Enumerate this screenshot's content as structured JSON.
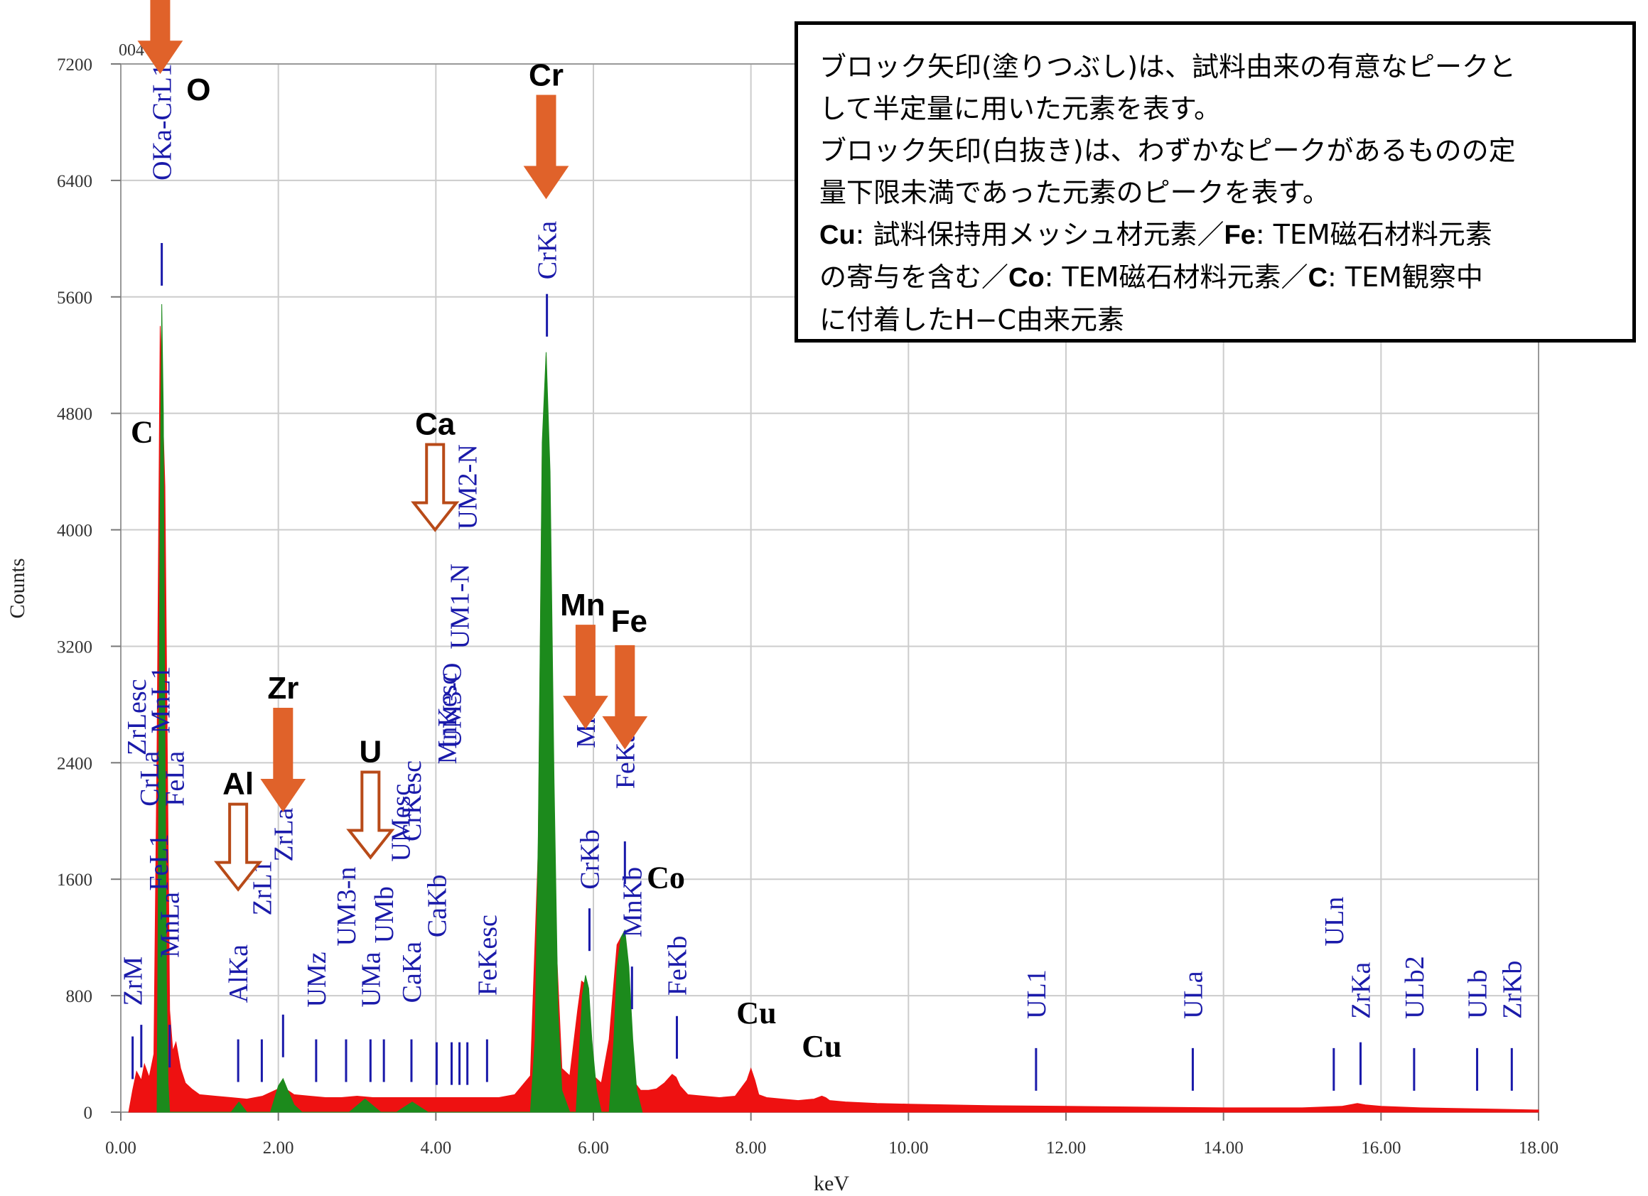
{
  "chart_data": {
    "type": "area",
    "xlabel": "keV",
    "ylabel": "Counts",
    "xlim": [
      0,
      18
    ],
    "ylim": [
      0,
      7200
    ],
    "x_ticks": [
      "0.00",
      "2.00",
      "4.00",
      "6.00",
      "8.00",
      "10.00",
      "12.00",
      "14.00",
      "16.00",
      "18.00"
    ],
    "y_ticks": [
      "0",
      "800",
      "1600",
      "2400",
      "3200",
      "4000",
      "4800",
      "5600",
      "6400",
      "7200"
    ],
    "grid": true,
    "colors": {
      "background_spectrum": "#ee1111",
      "analyzed_peaks": "#1c8a1c",
      "marker_lines": "#1a1aaa",
      "arrow": "#e0622a",
      "arrow_outline": "#b84a18"
    },
    "series": [
      {
        "name": "",
        "color": "#ee1111",
        "x": [
          0.1,
          0.15,
          0.2,
          0.26,
          0.3,
          0.36,
          0.42,
          0.46,
          0.5,
          0.56,
          0.62,
          0.66,
          0.7,
          0.76,
          0.82,
          0.9,
          1.0,
          1.2,
          1.4,
          1.6,
          1.8,
          2.0,
          2.06,
          2.12,
          2.2,
          2.4,
          2.6,
          2.8,
          3.0,
          3.2,
          3.4,
          3.6,
          3.8,
          4.0,
          4.2,
          4.4,
          4.6,
          4.8,
          5.0,
          5.2,
          5.3,
          5.35,
          5.4,
          5.45,
          5.5,
          5.6,
          5.7,
          5.8,
          5.85,
          5.9,
          5.95,
          6.0,
          6.1,
          6.2,
          6.3,
          6.35,
          6.4,
          6.45,
          6.5,
          6.6,
          6.7,
          6.8,
          6.9,
          7.0,
          7.05,
          7.1,
          7.2,
          7.4,
          7.6,
          7.8,
          7.95,
          8.0,
          8.05,
          8.1,
          8.2,
          8.4,
          8.6,
          8.8,
          8.9,
          8.95,
          9.0,
          9.2,
          9.6,
          10.0,
          11.0,
          12.0,
          13.0,
          14.0,
          15.0,
          15.5,
          15.7,
          15.8,
          16.0,
          16.5,
          17.0,
          17.5,
          18.0
        ],
        "values": [
          0,
          150,
          280,
          220,
          330,
          240,
          400,
          2500,
          5400,
          4300,
          700,
          420,
          480,
          300,
          200,
          160,
          120,
          110,
          100,
          90,
          110,
          160,
          180,
          150,
          120,
          110,
          100,
          100,
          110,
          100,
          100,
          100,
          100,
          100,
          100,
          100,
          100,
          100,
          120,
          250,
          1800,
          4500,
          5200,
          4200,
          1500,
          300,
          250,
          700,
          900,
          880,
          600,
          250,
          200,
          500,
          1150,
          1200,
          1000,
          450,
          220,
          150,
          150,
          160,
          200,
          260,
          240,
          180,
          120,
          110,
          100,
          110,
          220,
          300,
          220,
          120,
          100,
          90,
          80,
          90,
          110,
          100,
          80,
          70,
          60,
          55,
          45,
          40,
          35,
          30,
          30,
          40,
          60,
          50,
          40,
          30,
          25,
          20,
          15
        ]
      },
      {
        "name": "",
        "color": "#1c8a1c",
        "x": [
          0.46,
          0.48,
          0.5,
          0.52,
          0.54,
          0.56,
          0.58,
          0.6,
          0.62,
          1.4,
          1.5,
          1.6,
          1.9,
          2.0,
          2.06,
          2.12,
          2.2,
          2.3,
          2.9,
          3.1,
          3.3,
          3.5,
          3.7,
          3.9,
          5.2,
          5.26,
          5.3,
          5.35,
          5.4,
          5.45,
          5.5,
          5.55,
          5.6,
          5.7,
          5.78,
          5.82,
          5.86,
          5.9,
          5.94,
          5.98,
          6.04,
          6.1,
          6.2,
          6.26,
          6.3,
          6.35,
          6.4,
          6.45,
          6.5,
          6.55,
          6.62
        ],
        "values": [
          0,
          2000,
          4200,
          5550,
          4800,
          2600,
          900,
          200,
          0,
          0,
          70,
          0,
          0,
          180,
          230,
          150,
          50,
          0,
          0,
          90,
          0,
          0,
          70,
          0,
          0,
          500,
          1900,
          4600,
          5220,
          4400,
          2300,
          700,
          150,
          0,
          0,
          400,
          800,
          940,
          850,
          500,
          150,
          0,
          0,
          500,
          1000,
          1200,
          1250,
          1000,
          500,
          150,
          0
        ]
      }
    ],
    "element_arrows": [
      {
        "element": "O",
        "style": "filled",
        "x": 0.5,
        "tip": 7140
      },
      {
        "element": "Cr",
        "style": "filled",
        "x": 5.4,
        "tip": 6280
      },
      {
        "element": "Mn",
        "style": "filled",
        "x": 5.9,
        "tip": 2640
      },
      {
        "element": "Fe",
        "style": "filled",
        "x": 6.4,
        "tip": 2500
      },
      {
        "element": "Zr",
        "style": "filled",
        "x": 2.06,
        "tip": 2070
      },
      {
        "element": "Al",
        "style": "outline",
        "x": 1.49,
        "tip": 1530
      },
      {
        "element": "U",
        "style": "outline",
        "x": 3.17,
        "tip": 1750
      },
      {
        "element": "Ca",
        "style": "outline",
        "x": 3.99,
        "tip": 4000
      }
    ],
    "plain_labels": [
      {
        "text": "C",
        "x": 0.27,
        "y": 4600
      },
      {
        "text": "Co",
        "x": 6.92,
        "y": 1540
      },
      {
        "text": "Cu",
        "x": 8.07,
        "y": 610
      },
      {
        "text": "Cu",
        "x": 8.9,
        "y": 380
      }
    ],
    "line_markers": [
      {
        "label": "ZrM",
        "x": 0.15,
        "top": 520,
        "text_y": 730
      },
      {
        "label": "",
        "x": 0.26,
        "top": 600,
        "text_y": 0
      },
      {
        "label": "OKa-CrL1",
        "x": 0.52,
        "top": 5970,
        "text_y": 6400
      },
      {
        "label": "ZrLesc",
        "x": 0.2,
        "top": 0,
        "text_y": 2450
      },
      {
        "label": "MnL1",
        "x": 0.5,
        "top": 0,
        "text_y": 2600
      },
      {
        "label": "MnLa",
        "x": 0.62,
        "top": 600,
        "text_y": 1060
      },
      {
        "label": "FeL1",
        "x": 0.48,
        "top": 0,
        "text_y": 1520
      },
      {
        "label": "CrLa",
        "x": 0.36,
        "top": 0,
        "text_y": 2100
      },
      {
        "label": "FeLa",
        "x": 0.68,
        "top": 0,
        "text_y": 2100
      },
      {
        "label": "AlKa",
        "x": 1.49,
        "top": 500,
        "text_y": 750
      },
      {
        "label": "ZrL1",
        "x": 1.79,
        "top": 500,
        "text_y": 1350
      },
      {
        "label": "ZrLa",
        "x": 2.06,
        "top": 670,
        "text_y": 1720
      },
      {
        "label": "UMz",
        "x": 2.48,
        "top": 500,
        "text_y": 720
      },
      {
        "label": "UM3-n",
        "x": 2.86,
        "top": 500,
        "text_y": 1140
      },
      {
        "label": "UMa",
        "x": 3.17,
        "top": 500,
        "text_y": 720
      },
      {
        "label": "UMb",
        "x": 3.34,
        "top": 500,
        "text_y": 1160
      },
      {
        "label": "CaKa",
        "x": 3.69,
        "top": 500,
        "text_y": 750
      },
      {
        "label": "UMesc",
        "x": 3.55,
        "top": 0,
        "text_y": 1720
      },
      {
        "label": "CrKesc",
        "x": 3.69,
        "top": 0,
        "text_y": 1860
      },
      {
        "label": "CaKb",
        "x": 4.01,
        "top": 480,
        "text_y": 1200
      },
      {
        "label": "UM3-O",
        "x": 4.2,
        "top": 480,
        "text_y": 2500
      },
      {
        "label": "UM1-N",
        "x": 4.3,
        "top": 480,
        "text_y": 3180
      },
      {
        "label": "UM2-N",
        "x": 4.4,
        "top": 480,
        "text_y": 4000
      },
      {
        "label": "MnKesc",
        "x": 4.14,
        "top": 0,
        "text_y": 2390
      },
      {
        "label": "FeKesc",
        "x": 4.65,
        "top": 500,
        "text_y": 800
      },
      {
        "label": "CrKa",
        "x": 5.41,
        "top": 5620,
        "text_y": 5720
      },
      {
        "label": "CrKb",
        "x": 5.95,
        "top": 1400,
        "text_y": 1530
      },
      {
        "label": "MnKa",
        "x": 5.9,
        "top": 0,
        "text_y": 2500
      },
      {
        "label": "FeKa",
        "x": 6.4,
        "top": 1860,
        "text_y": 2220
      },
      {
        "label": "MnKb",
        "x": 6.49,
        "top": 1000,
        "text_y": 1200
      },
      {
        "label": "FeKb",
        "x": 7.06,
        "top": 660,
        "text_y": 800
      },
      {
        "label": "UL1",
        "x": 11.62,
        "top": 440,
        "text_y": 640
      },
      {
        "label": "ULa",
        "x": 13.61,
        "top": 440,
        "text_y": 640
      },
      {
        "label": "ULn",
        "x": 15.4,
        "top": 440,
        "text_y": 1140
      },
      {
        "label": "ZrKa",
        "x": 15.74,
        "top": 480,
        "text_y": 640
      },
      {
        "label": "ULb2",
        "x": 16.42,
        "top": 440,
        "text_y": 640
      },
      {
        "label": "ULb",
        "x": 17.22,
        "top": 440,
        "text_y": 640
      },
      {
        "label": "ZrKb",
        "x": 17.66,
        "top": 440,
        "text_y": 640
      }
    ],
    "stray_label": "004"
  },
  "note": {
    "lines": [
      [
        {
          "text": "ブロック矢印(塗りつぶし)は、試料由来の有意なピークと"
        }
      ],
      [
        {
          "text": "して半定量に用いた元素を表す。"
        }
      ],
      [
        {
          "text": "ブロック矢印(白抜き)は、わずかなピークがあるものの定"
        }
      ],
      [
        {
          "text": "量下限未満であった元素のピークを表す。"
        }
      ],
      [
        {
          "text": "Cu",
          "bold": true
        },
        {
          "text": ": 試料保持用メッシュ材元素／"
        },
        {
          "text": "Fe",
          "bold": true
        },
        {
          "text": ": TEM磁石材料元素"
        }
      ],
      [
        {
          "text": "の寄与を含む／"
        },
        {
          "text": "Co",
          "bold": true
        },
        {
          "text": ": TEM磁石材料元素／"
        },
        {
          "text": "C",
          "bold": true
        },
        {
          "text": ": TEM観察中"
        }
      ],
      [
        {
          "text": "に付着したH−C由来元素"
        }
      ]
    ]
  }
}
